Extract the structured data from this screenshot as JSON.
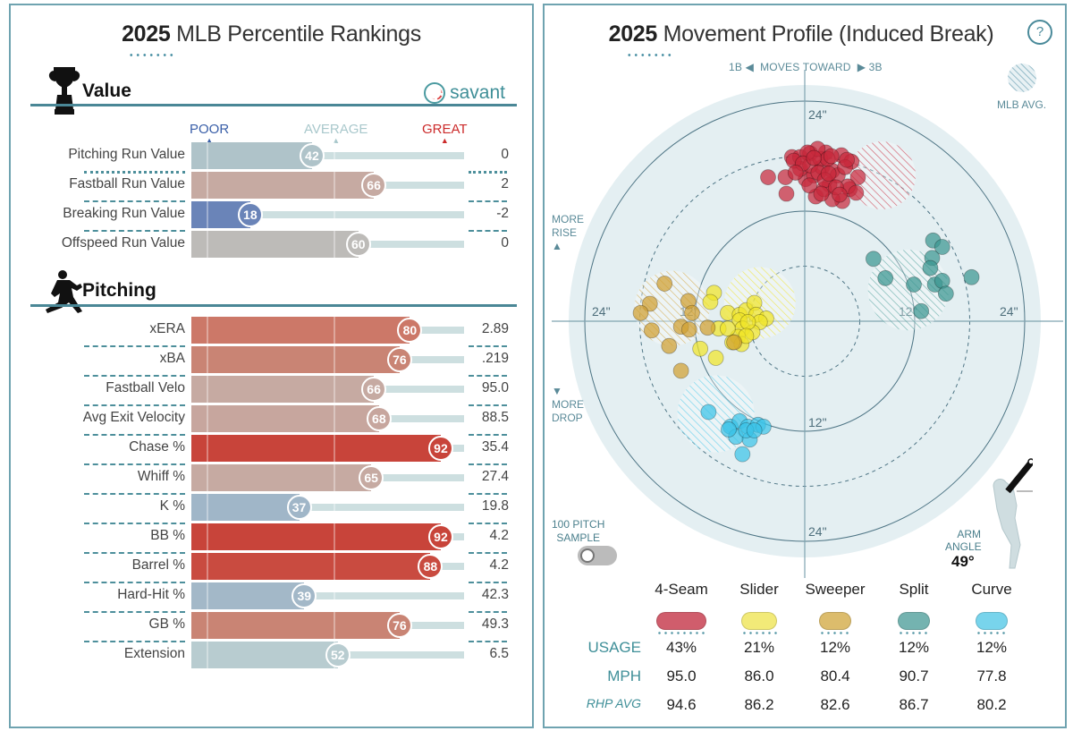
{
  "left": {
    "title_year": "2025",
    "title_rest": " MLB Percentile Rankings",
    "value_section": "Value",
    "pitching_section": "Pitching",
    "savant": "savant",
    "legend": {
      "poor": "POOR",
      "average": "AVERAGE",
      "great": "GREAT"
    },
    "colors": {
      "poor": "#3a5fa8",
      "average": "#a9c8cc",
      "great": "#cc2b2b"
    },
    "value_rows": [
      {
        "label": "Pitching Run Value",
        "percentile": 42,
        "value": "0",
        "color": "#afc3c9"
      },
      {
        "label": "Fastball Run Value",
        "percentile": 66,
        "value": "2",
        "color": "#c6aaa2"
      },
      {
        "label": "Breaking Run Value",
        "percentile": 18,
        "value": "-2",
        "color": "#6a84b8"
      },
      {
        "label": "Offspeed Run Value",
        "percentile": 60,
        "value": "0",
        "color": "#bdbbb8"
      }
    ],
    "pitching_rows": [
      {
        "label": "xERA",
        "percentile": 80,
        "value": "2.89",
        "color": "#cc7868"
      },
      {
        "label": "xBA",
        "percentile": 76,
        "value": ".219",
        "color": "#c98474"
      },
      {
        "label": "Fastball Velo",
        "percentile": 66,
        "value": "95.0",
        "color": "#c6aaa2"
      },
      {
        "label": "Avg Exit Velocity",
        "percentile": 68,
        "value": "88.5",
        "color": "#c7a69e"
      },
      {
        "label": "Chase %",
        "percentile": 92,
        "value": "35.4",
        "color": "#c8443a"
      },
      {
        "label": "Whiff %",
        "percentile": 65,
        "value": "27.4",
        "color": "#c6aaa2"
      },
      {
        "label": "K %",
        "percentile": 37,
        "value": "19.8",
        "color": "#a0b6c8"
      },
      {
        "label": "BB %",
        "percentile": 92,
        "value": "4.2",
        "color": "#c8443a"
      },
      {
        "label": "Barrel %",
        "percentile": 88,
        "value": "4.2",
        "color": "#c94b40"
      },
      {
        "label": "Hard-Hit %",
        "percentile": 39,
        "value": "42.3",
        "color": "#a3b8c8"
      },
      {
        "label": "GB %",
        "percentile": 76,
        "value": "49.3",
        "color": "#c98474"
      },
      {
        "label": "Extension",
        "percentile": 52,
        "value": "6.5",
        "color": "#b8ccd0"
      }
    ]
  },
  "right": {
    "title_year": "2025",
    "title_rest": " Movement Profile (Induced Break)",
    "help": "?",
    "direction": {
      "left": "1B",
      "middle": "MOVES TOWARD",
      "right": "3B"
    },
    "mlb_avg": "MLB AVG.",
    "more_rise": [
      "MORE",
      "RISE"
    ],
    "more_drop": [
      "MORE",
      "DROP"
    ],
    "sample": [
      "100 PITCH",
      "SAMPLE"
    ],
    "sample_toggle_on": false,
    "arm_angle_label": [
      "ARM",
      "ANGLE"
    ],
    "arm_angle": "49°",
    "ring_labels": {
      "inner": "12\"",
      "outer": "24\""
    },
    "table": {
      "row_labels": {
        "usage": "USAGE",
        "mph": "MPH",
        "rhp_avg": "RHP AVG"
      },
      "pitches": [
        {
          "name": "4-Seam",
          "color": "#d05d6c",
          "usage": "43%",
          "mph": "95.0",
          "rhp_avg": "94.6"
        },
        {
          "name": "Slider",
          "color": "#f2ea78",
          "usage": "21%",
          "mph": "86.0",
          "rhp_avg": "86.2"
        },
        {
          "name": "Sweeper",
          "color": "#dcbc6c",
          "usage": "12%",
          "mph": "80.4",
          "rhp_avg": "82.6"
        },
        {
          "name": "Split",
          "color": "#74b3b0",
          "usage": "12%",
          "mph": "90.7",
          "rhp_avg": "86.7"
        },
        {
          "name": "Curve",
          "color": "#78d4ec",
          "usage": "12%",
          "mph": "77.8",
          "rhp_avg": "80.2"
        }
      ]
    }
  },
  "chart_data": {
    "type": "scatter",
    "title": "2025 Movement Profile (Induced Break)",
    "xlim": [
      -24,
      24
    ],
    "ylim": [
      -24,
      24
    ],
    "rings": [
      6,
      12,
      18,
      24
    ],
    "series": [
      {
        "name": "4-Seam",
        "color": "#c8283c",
        "mlb_avg": {
          "x": 8.4,
          "y": 15.9,
          "r": 3.7
        },
        "points": [
          [
            -4.0,
            15.7
          ],
          [
            -2.1,
            15.7
          ],
          [
            -2.0,
            13.9
          ],
          [
            -1.4,
            17.9
          ],
          [
            -0.5,
            17.9
          ],
          [
            0.6,
            18.3
          ],
          [
            2.3,
            18.4
          ],
          [
            4.0,
            18.1
          ],
          [
            5.1,
            17.4
          ],
          [
            5.8,
            15.7
          ],
          [
            4.9,
            14.4
          ],
          [
            4.1,
            13.1
          ],
          [
            3.0,
            13.3
          ],
          [
            1.2,
            13.6
          ],
          [
            0.1,
            15.5
          ],
          [
            1.0,
            15.9
          ],
          [
            1.9,
            16.8
          ],
          [
            3.0,
            16.4
          ],
          [
            2.7,
            14.9
          ],
          [
            -0.5,
            16.6
          ],
          [
            0.6,
            17.0
          ],
          [
            1.7,
            17.7
          ],
          [
            3.6,
            15.9
          ],
          [
            4.7,
            14.7
          ],
          [
            5.6,
            14.0
          ],
          [
            -1.2,
            17.5
          ],
          [
            1.4,
            18.8
          ],
          [
            2.5,
            17.7
          ],
          [
            0.3,
            18.4
          ],
          [
            2.1,
            14.4
          ],
          [
            1.5,
            16.2
          ],
          [
            2.2,
            15.4
          ],
          [
            3.4,
            14.6
          ],
          [
            -0.2,
            17.2
          ],
          [
            1.0,
            17.8
          ],
          [
            2.9,
            18.0
          ],
          [
            4.4,
            16.8
          ],
          [
            3.8,
            13.8
          ],
          [
            0.5,
            14.8
          ],
          [
            -1.0,
            16.2
          ],
          [
            1.8,
            13.9
          ],
          [
            4.6,
            17.6
          ],
          [
            2.6,
            16.1
          ]
        ]
      },
      {
        "name": "Slider",
        "color": "#f0e428",
        "mlb_avg": {
          "x": -4.9,
          "y": 2.0,
          "r": 3.9
        },
        "points": [
          [
            -9.9,
            3.1
          ],
          [
            -10.3,
            2.1
          ],
          [
            -8.4,
            0.9
          ],
          [
            -7.1,
            0.7
          ],
          [
            -6.4,
            1.2
          ],
          [
            -5.5,
            2.0
          ],
          [
            -5.3,
            0.7
          ],
          [
            -4.2,
            0.3
          ],
          [
            -4.9,
            -0.1
          ],
          [
            -7.1,
            0.1
          ],
          [
            -6.8,
            -0.8
          ],
          [
            -5.7,
            -1.2
          ],
          [
            -7.3,
            -1.7
          ],
          [
            -9.4,
            -0.8
          ],
          [
            -11.4,
            -3.0
          ],
          [
            -9.7,
            -4.0
          ],
          [
            -6.9,
            -2.5
          ],
          [
            -7.9,
            -2.3
          ],
          [
            -8.4,
            -0.8
          ],
          [
            -6.2,
            -0.1
          ],
          [
            -6.4,
            -1.6
          ]
        ]
      },
      {
        "name": "Sweeper",
        "color": "#d0a030",
        "mlb_avg": {
          "x": -14.5,
          "y": 1.4,
          "r": 4.1
        },
        "points": [
          [
            -15.3,
            4.1
          ],
          [
            -16.9,
            1.9
          ],
          [
            -17.9,
            0.9
          ],
          [
            -16.7,
            -1.0
          ],
          [
            -14.8,
            -2.7
          ],
          [
            -13.5,
            -5.4
          ],
          [
            -12.7,
            2.2
          ],
          [
            -12.3,
            0.9
          ],
          [
            -13.5,
            -0.6
          ],
          [
            -12.6,
            -0.9
          ],
          [
            -10.6,
            -0.7
          ],
          [
            -7.7,
            -2.3
          ]
        ]
      },
      {
        "name": "Split",
        "color": "#3a9590",
        "mlb_avg": {
          "x": 11.3,
          "y": 3.4,
          "r": 4.4
        },
        "points": [
          [
            7.5,
            6.8
          ],
          [
            8.8,
            4.7
          ],
          [
            11.9,
            4.0
          ],
          [
            12.7,
            1.1
          ],
          [
            14.0,
            8.8
          ],
          [
            15.0,
            8.1
          ],
          [
            13.9,
            6.9
          ],
          [
            13.7,
            5.8
          ],
          [
            14.2,
            4.0
          ],
          [
            15.0,
            4.4
          ],
          [
            15.4,
            3.0
          ],
          [
            18.2,
            4.8
          ]
        ]
      },
      {
        "name": "Curve",
        "color": "#3cc4e8",
        "mlb_avg": {
          "x": -9.7,
          "y": -10.1,
          "r": 4.2
        },
        "points": [
          [
            -10.5,
            -9.9
          ],
          [
            -8.1,
            -11.5
          ],
          [
            -7.1,
            -10.9
          ],
          [
            -6.2,
            -11.5
          ],
          [
            -5.1,
            -11.3
          ],
          [
            -4.5,
            -11.5
          ],
          [
            -7.5,
            -12.6
          ],
          [
            -6.0,
            -12.9
          ],
          [
            -6.8,
            -14.5
          ],
          [
            -8.3,
            -11.8
          ],
          [
            -6.4,
            -11.9
          ],
          [
            -5.5,
            -11.9
          ]
        ]
      }
    ]
  }
}
